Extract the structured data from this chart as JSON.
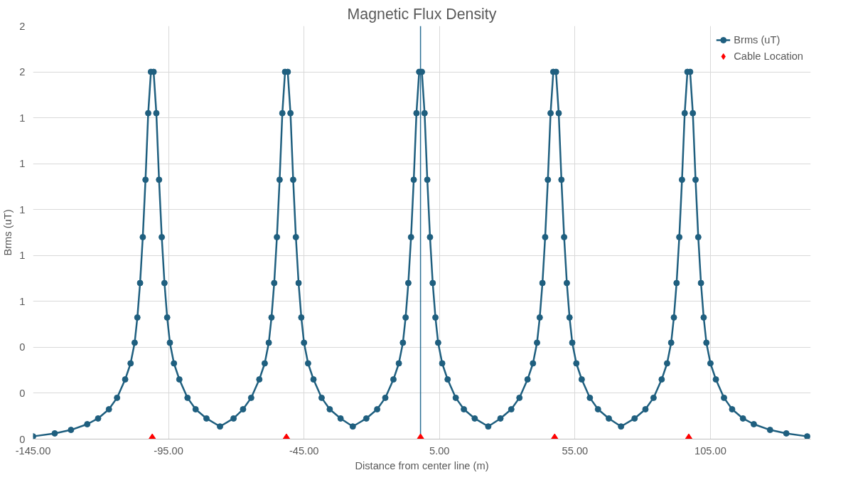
{
  "chart_data": {
    "type": "line",
    "title": "Magnetic Flux Density",
    "xlabel": "Distance from center line (m)",
    "ylabel": "Brms (uT)",
    "xlim": [
      -145,
      142
    ],
    "xticks": [
      {
        "value": -145,
        "label": "-145.00"
      },
      {
        "value": -95,
        "label": "-95.00"
      },
      {
        "value": -45,
        "label": "-45.00"
      },
      {
        "value": 5,
        "label": "5.00"
      },
      {
        "value": 55,
        "label": "55.00"
      },
      {
        "value": 105,
        "label": "105.00"
      }
    ],
    "ylim": [
      0,
      1.8
    ],
    "yticks": [
      {
        "value": 0,
        "label": "0"
      },
      {
        "value": 0.2,
        "label": "0"
      },
      {
        "value": 0.4,
        "label": "0"
      },
      {
        "value": 0.6,
        "label": "1"
      },
      {
        "value": 0.8,
        "label": "1"
      },
      {
        "value": 1.0,
        "label": "1"
      },
      {
        "value": 1.2,
        "label": "1"
      },
      {
        "value": 1.4,
        "label": "1"
      },
      {
        "value": 1.6,
        "label": "2"
      },
      {
        "value": 1.8,
        "label": "2"
      }
    ],
    "grid": true,
    "legend": "top right",
    "marker": "circle",
    "line_style": "solid",
    "ref_lines": [
      {
        "axis": "x",
        "value": -2,
        "color": "#2b6f95"
      }
    ],
    "series": [
      {
        "name": "Brms (uT)",
        "color": "#1f5f7f",
        "x": [
          -145,
          -137,
          -131,
          -125,
          -121,
          -117,
          -114,
          -111,
          -109,
          -107.5,
          -106.5,
          -105.5,
          -104.5,
          -103.5,
          -102.5,
          -101.5,
          -100.5,
          -99.5,
          -98.5,
          -97.5,
          -96.5,
          -95.5,
          -94.5,
          -93,
          -91,
          -88,
          -85,
          -81,
          -76,
          -71,
          -67.5,
          -64.5,
          -61.5,
          -59.5,
          -58,
          -57,
          -56,
          -55,
          -54,
          -53,
          -52,
          -51,
          -50,
          -49,
          -48,
          -47,
          -46,
          -45,
          -43.5,
          -41.5,
          -38.5,
          -35.5,
          -31.5,
          -27,
          -22,
          -18,
          -15,
          -12,
          -10,
          -8.5,
          -7.5,
          -6.5,
          -5.5,
          -4.5,
          -3.5,
          -2.5,
          -1.5,
          -0.5,
          0.5,
          1.5,
          2.5,
          3.5,
          4.5,
          6,
          8,
          11,
          14,
          18,
          23,
          27.5,
          31.5,
          34.5,
          37.5,
          39.5,
          41,
          42,
          43,
          44,
          45,
          46,
          47,
          48,
          49,
          50,
          51,
          52,
          53,
          54,
          55.5,
          57.5,
          60.5,
          63.5,
          67.5,
          72,
          77,
          81,
          84,
          87,
          89,
          90.5,
          91.5,
          92.5,
          93.5,
          94.5,
          95.5,
          96.5,
          97.5,
          98.5,
          99.5,
          100.5,
          101.5,
          102.5,
          103.5,
          105,
          107,
          110,
          113,
          117,
          121,
          127,
          133,
          140.7
        ],
        "values": [
          0.012,
          0.025,
          0.04,
          0.065,
          0.09,
          0.13,
          0.18,
          0.26,
          0.33,
          0.42,
          0.53,
          0.68,
          0.88,
          1.13,
          1.42,
          1.6,
          1.6,
          1.42,
          1.13,
          0.88,
          0.68,
          0.53,
          0.42,
          0.33,
          0.26,
          0.18,
          0.13,
          0.09,
          0.055,
          0.09,
          0.13,
          0.18,
          0.26,
          0.33,
          0.42,
          0.53,
          0.68,
          0.88,
          1.13,
          1.42,
          1.6,
          1.6,
          1.42,
          1.13,
          0.88,
          0.68,
          0.53,
          0.42,
          0.33,
          0.26,
          0.18,
          0.13,
          0.09,
          0.055,
          0.09,
          0.13,
          0.18,
          0.26,
          0.33,
          0.42,
          0.53,
          0.68,
          0.88,
          1.13,
          1.42,
          1.6,
          1.6,
          1.42,
          1.13,
          0.88,
          0.68,
          0.53,
          0.42,
          0.33,
          0.26,
          0.18,
          0.13,
          0.09,
          0.055,
          0.09,
          0.13,
          0.18,
          0.26,
          0.33,
          0.42,
          0.53,
          0.68,
          0.88,
          1.13,
          1.42,
          1.6,
          1.6,
          1.42,
          1.13,
          0.88,
          0.68,
          0.53,
          0.42,
          0.33,
          0.26,
          0.18,
          0.13,
          0.09,
          0.055,
          0.09,
          0.13,
          0.18,
          0.26,
          0.33,
          0.42,
          0.53,
          0.68,
          0.88,
          1.13,
          1.42,
          1.6,
          1.6,
          1.42,
          1.13,
          0.88,
          0.68,
          0.53,
          0.42,
          0.33,
          0.26,
          0.18,
          0.13,
          0.09,
          0.065,
          0.04,
          0.025,
          0.012
        ]
      },
      {
        "name": "Cable Location",
        "type": "scatter",
        "color": "#ff0000",
        "marker": "diamond",
        "x": [
          -101,
          -51.5,
          -2,
          47.5,
          97
        ],
        "values": [
          0,
          0,
          0,
          0,
          0
        ]
      }
    ]
  }
}
